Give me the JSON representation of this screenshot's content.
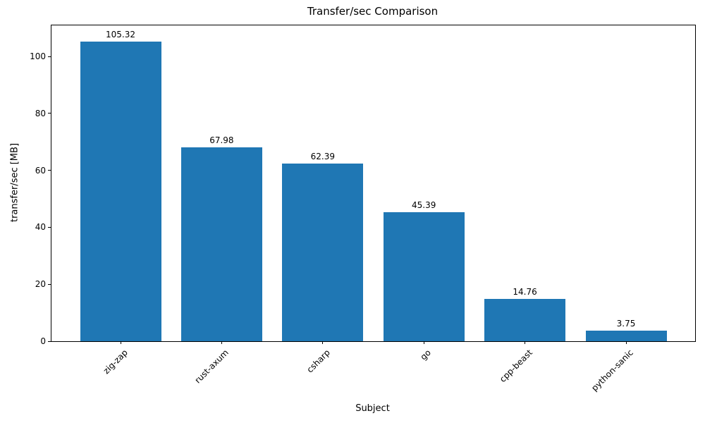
{
  "chart_data": {
    "type": "bar",
    "title": "Transfer/sec Comparison",
    "xlabel": "Subject",
    "ylabel": "transfer/sec [MB]",
    "categories": [
      "zig-zap",
      "rust-axum",
      "csharp",
      "go",
      "cpp-beast",
      "python-sanic"
    ],
    "values": [
      105.32,
      67.98,
      62.39,
      45.39,
      14.76,
      3.75
    ],
    "bar_labels": [
      "105.32",
      "67.98",
      "62.39",
      "45.39",
      "14.76",
      "3.75"
    ],
    "yticks": [
      0,
      20,
      40,
      60,
      80,
      100
    ],
    "ylim": [
      0,
      110.9
    ],
    "bar_color": "#1f77b4",
    "grid": false,
    "legend": null,
    "x_tick_rotation_deg": 45
  }
}
